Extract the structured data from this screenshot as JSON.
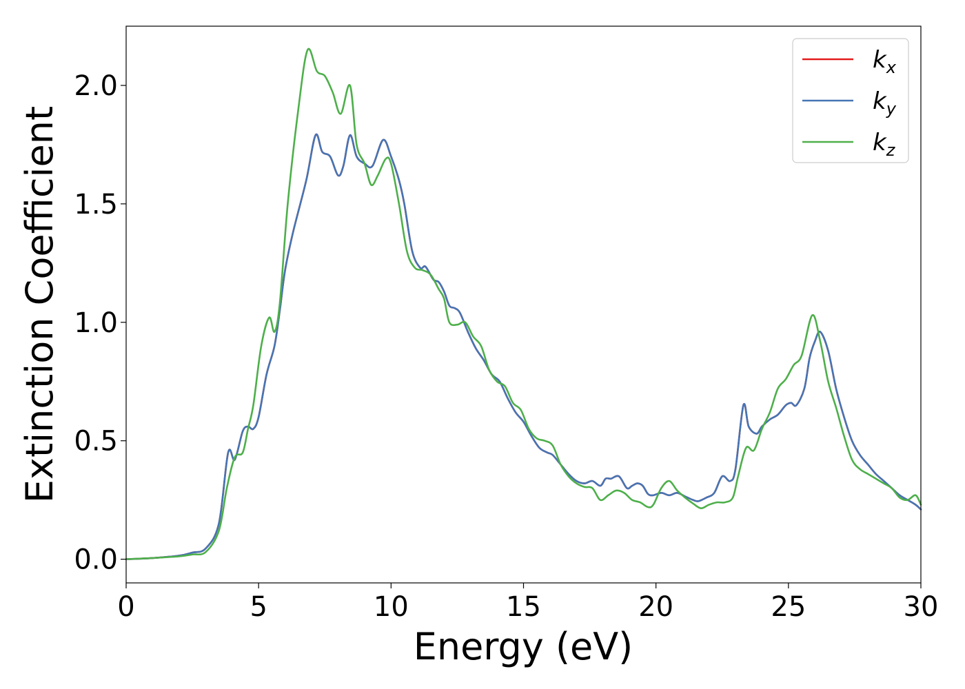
{
  "chart_data": {
    "type": "line",
    "title": "",
    "xlabel": "Energy (eV)",
    "ylabel": "Extinction Coefficient",
    "xlim": [
      0,
      30
    ],
    "ylim": [
      -0.1,
      2.25
    ],
    "xticks": [
      0,
      5,
      10,
      15,
      20,
      25,
      30
    ],
    "xtick_labels": [
      "0",
      "5",
      "10",
      "15",
      "20",
      "25",
      "30"
    ],
    "yticks": [
      0.0,
      0.5,
      1.0,
      1.5,
      2.0
    ],
    "ytick_labels": [
      "0.0",
      "0.5",
      "1.0",
      "1.5",
      "2.0"
    ],
    "grid": false,
    "legend_position": "top-right",
    "series": [
      {
        "name": "k",
        "subscript": "x",
        "color": "#e41a1c",
        "x": [
          0,
          1,
          2,
          2.5,
          3,
          3.5,
          3.85,
          4.1,
          4.4,
          4.6,
          4.8,
          5.0,
          5.3,
          5.6,
          5.8,
          6.0,
          6.3,
          6.8,
          7.15,
          7.4,
          7.7,
          8.0,
          8.2,
          8.45,
          8.7,
          9.0,
          9.3,
          9.7,
          10.0,
          10.3,
          10.5,
          10.8,
          11.1,
          11.3,
          11.6,
          11.8,
          12.0,
          12.2,
          12.4,
          12.6,
          12.9,
          13.2,
          13.5,
          13.8,
          14.1,
          14.4,
          14.7,
          15.0,
          15.3,
          15.6,
          15.9,
          16.1,
          16.4,
          16.7,
          17.0,
          17.3,
          17.6,
          17.9,
          18.1,
          18.3,
          18.6,
          18.9,
          19.1,
          19.3,
          19.5,
          19.7,
          19.9,
          20.2,
          20.5,
          20.8,
          21.1,
          21.4,
          21.6,
          21.9,
          22.2,
          22.5,
          22.8,
          23.0,
          23.3,
          23.5,
          23.8,
          24.0,
          24.3,
          24.6,
          24.9,
          25.1,
          25.3,
          25.6,
          25.8,
          26.0,
          26.2,
          26.5,
          26.8,
          27.1,
          27.4,
          27.7,
          28.0,
          28.3,
          28.6,
          28.9,
          29.2,
          29.5,
          29.8,
          30.0
        ],
        "y": [
          0,
          0.005,
          0.015,
          0.028,
          0.045,
          0.15,
          0.45,
          0.42,
          0.54,
          0.56,
          0.55,
          0.6,
          0.78,
          0.9,
          1.05,
          1.22,
          1.38,
          1.6,
          1.79,
          1.72,
          1.7,
          1.62,
          1.66,
          1.79,
          1.7,
          1.67,
          1.66,
          1.77,
          1.7,
          1.6,
          1.5,
          1.3,
          1.23,
          1.235,
          1.18,
          1.17,
          1.13,
          1.07,
          1.06,
          1.04,
          0.96,
          0.89,
          0.84,
          0.78,
          0.75,
          0.68,
          0.62,
          0.58,
          0.52,
          0.47,
          0.45,
          0.44,
          0.4,
          0.36,
          0.33,
          0.32,
          0.33,
          0.31,
          0.34,
          0.34,
          0.35,
          0.3,
          0.31,
          0.32,
          0.31,
          0.275,
          0.27,
          0.28,
          0.27,
          0.28,
          0.265,
          0.25,
          0.245,
          0.26,
          0.28,
          0.35,
          0.33,
          0.38,
          0.65,
          0.56,
          0.53,
          0.56,
          0.59,
          0.61,
          0.65,
          0.66,
          0.65,
          0.72,
          0.85,
          0.92,
          0.96,
          0.88,
          0.72,
          0.6,
          0.5,
          0.44,
          0.4,
          0.36,
          0.33,
          0.3,
          0.27,
          0.25,
          0.23,
          0.21
        ]
      },
      {
        "name": "k",
        "subscript": "y",
        "color": "#4575b4",
        "x": [
          0,
          1,
          2,
          2.5,
          3,
          3.5,
          3.85,
          4.1,
          4.4,
          4.6,
          4.8,
          5.0,
          5.3,
          5.6,
          5.8,
          6.0,
          6.3,
          6.8,
          7.15,
          7.4,
          7.7,
          8.0,
          8.2,
          8.45,
          8.7,
          9.0,
          9.3,
          9.7,
          10.0,
          10.3,
          10.5,
          10.8,
          11.1,
          11.3,
          11.6,
          11.8,
          12.0,
          12.2,
          12.4,
          12.6,
          12.9,
          13.2,
          13.5,
          13.8,
          14.1,
          14.4,
          14.7,
          15.0,
          15.3,
          15.6,
          15.9,
          16.1,
          16.4,
          16.7,
          17.0,
          17.3,
          17.6,
          17.9,
          18.1,
          18.3,
          18.6,
          18.9,
          19.1,
          19.3,
          19.5,
          19.7,
          19.9,
          20.2,
          20.5,
          20.8,
          21.1,
          21.4,
          21.6,
          21.9,
          22.2,
          22.5,
          22.8,
          23.0,
          23.3,
          23.5,
          23.8,
          24.0,
          24.3,
          24.6,
          24.9,
          25.1,
          25.3,
          25.6,
          25.8,
          26.0,
          26.2,
          26.5,
          26.8,
          27.1,
          27.4,
          27.7,
          28.0,
          28.3,
          28.6,
          28.9,
          29.2,
          29.5,
          29.8,
          30.0
        ],
        "y": [
          0,
          0.005,
          0.015,
          0.028,
          0.045,
          0.15,
          0.45,
          0.42,
          0.54,
          0.56,
          0.55,
          0.6,
          0.78,
          0.9,
          1.05,
          1.22,
          1.38,
          1.6,
          1.79,
          1.72,
          1.7,
          1.62,
          1.66,
          1.79,
          1.7,
          1.67,
          1.66,
          1.77,
          1.7,
          1.6,
          1.5,
          1.3,
          1.23,
          1.235,
          1.18,
          1.17,
          1.13,
          1.07,
          1.06,
          1.04,
          0.96,
          0.89,
          0.84,
          0.78,
          0.75,
          0.68,
          0.62,
          0.58,
          0.52,
          0.47,
          0.45,
          0.44,
          0.4,
          0.36,
          0.33,
          0.32,
          0.33,
          0.31,
          0.34,
          0.34,
          0.35,
          0.3,
          0.31,
          0.32,
          0.31,
          0.275,
          0.27,
          0.28,
          0.27,
          0.28,
          0.265,
          0.25,
          0.245,
          0.26,
          0.28,
          0.35,
          0.33,
          0.38,
          0.65,
          0.56,
          0.53,
          0.56,
          0.59,
          0.61,
          0.65,
          0.66,
          0.65,
          0.72,
          0.85,
          0.92,
          0.96,
          0.88,
          0.72,
          0.6,
          0.5,
          0.44,
          0.4,
          0.36,
          0.33,
          0.3,
          0.27,
          0.25,
          0.23,
          0.21
        ]
      },
      {
        "name": "k",
        "subscript": "z",
        "color": "#4daf4a",
        "x": [
          0,
          1,
          2,
          2.5,
          3,
          3.5,
          3.8,
          4.1,
          4.4,
          4.6,
          4.8,
          5.1,
          5.4,
          5.6,
          5.8,
          6.1,
          6.5,
          6.85,
          7.2,
          7.5,
          7.8,
          8.1,
          8.45,
          8.7,
          9.0,
          9.25,
          9.5,
          9.8,
          10.0,
          10.3,
          10.6,
          10.9,
          11.2,
          11.5,
          11.8,
          12.0,
          12.2,
          12.5,
          12.8,
          13.1,
          13.4,
          13.7,
          14.0,
          14.3,
          14.6,
          14.9,
          15.2,
          15.5,
          15.8,
          16.1,
          16.4,
          16.7,
          17.0,
          17.3,
          17.6,
          17.9,
          18.2,
          18.5,
          18.8,
          19.1,
          19.4,
          19.7,
          19.9,
          20.2,
          20.5,
          20.8,
          21.1,
          21.4,
          21.7,
          22.0,
          22.3,
          22.6,
          22.9,
          23.1,
          23.4,
          23.7,
          24.0,
          24.3,
          24.6,
          24.9,
          25.2,
          25.5,
          25.9,
          26.2,
          26.5,
          26.8,
          27.1,
          27.4,
          27.7,
          28.0,
          28.3,
          28.6,
          28.9,
          29.2,
          29.5,
          29.8,
          30.0
        ],
        "y": [
          0,
          0.005,
          0.012,
          0.02,
          0.03,
          0.12,
          0.3,
          0.43,
          0.45,
          0.55,
          0.65,
          0.9,
          1.02,
          0.96,
          1.08,
          1.5,
          1.9,
          2.15,
          2.06,
          2.04,
          1.97,
          1.88,
          2.0,
          1.75,
          1.67,
          1.58,
          1.62,
          1.69,
          1.67,
          1.5,
          1.3,
          1.23,
          1.22,
          1.2,
          1.14,
          1.1,
          1.0,
          0.99,
          1.0,
          0.94,
          0.9,
          0.8,
          0.75,
          0.73,
          0.66,
          0.63,
          0.55,
          0.51,
          0.5,
          0.48,
          0.4,
          0.35,
          0.32,
          0.305,
          0.3,
          0.25,
          0.27,
          0.29,
          0.28,
          0.25,
          0.24,
          0.22,
          0.23,
          0.3,
          0.33,
          0.29,
          0.26,
          0.235,
          0.215,
          0.23,
          0.24,
          0.24,
          0.26,
          0.35,
          0.47,
          0.46,
          0.55,
          0.62,
          0.72,
          0.76,
          0.82,
          0.86,
          1.03,
          0.92,
          0.75,
          0.64,
          0.52,
          0.42,
          0.38,
          0.36,
          0.34,
          0.32,
          0.3,
          0.26,
          0.25,
          0.27,
          0.23
        ]
      }
    ]
  }
}
